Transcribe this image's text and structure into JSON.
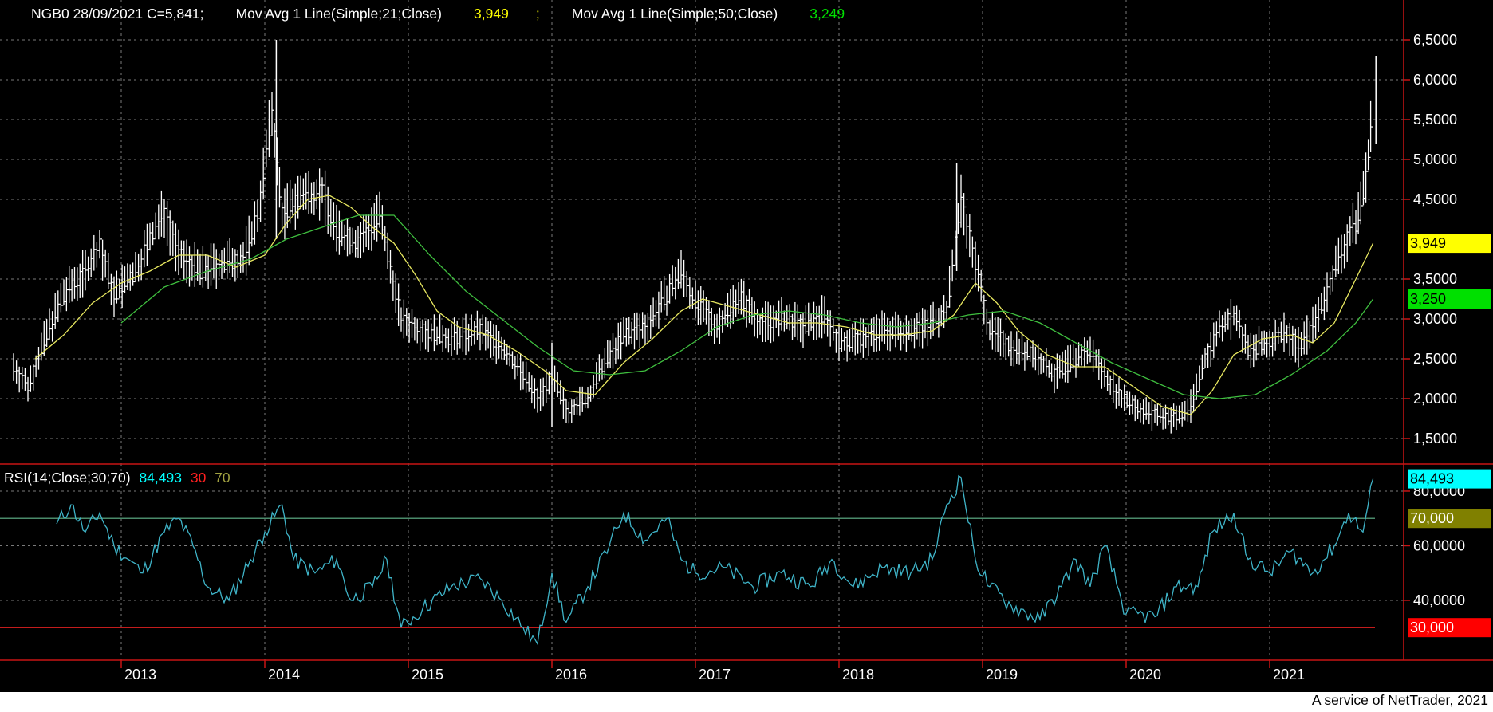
{
  "header": {
    "price_legend": "NGB0 28/09/2021 C=5,841;",
    "ma21_legend": "Mov Avg 1 Line(Simple;21;Close)",
    "ma21_value": "3,949",
    "ma50_legend": "Mov Avg 1 Line(Simple;50;Close)",
    "ma50_value": "3,249",
    "rsi_legend": "RSI(14;Close;30;70)",
    "rsi_value": "84,493",
    "rsi_low": "30",
    "rsi_high": "70"
  },
  "footer": {
    "credit": "A service of NetTrader, 2021"
  },
  "colors": {
    "background": "#000000",
    "price": "#ffffff",
    "ma21": "#e8e860",
    "ma50": "#3fbf3f",
    "rsi": "#3fb4c8",
    "rsi_70_line": "#4a8a6a",
    "rsi_30_line": "#e02020",
    "axis_line": "#c81414",
    "ma21_badge": "#ffff00",
    "ma50_badge": "#00e000",
    "rsi_badge": "#00ffff",
    "rsi70_badge": "#808000",
    "rsi30_badge": "#ff0000"
  },
  "chart_data": [
    {
      "type": "line",
      "panel": "price",
      "x_tick_labels": [
        "2013",
        "2014",
        "2015",
        "2016",
        "2017",
        "2018",
        "2019",
        "2020",
        "2021"
      ],
      "y_tick_labels": [
        "1,5000",
        "2,0000",
        "2,5000",
        "3,0000",
        "3,5000",
        "4,5000",
        "5,0000",
        "5,5000",
        "6,0000",
        "6,5000"
      ],
      "ylim": [
        1.35,
        6.65
      ],
      "grid": true,
      "series": [
        {
          "name": "NGB0",
          "style": "ohlc",
          "points": [
            [
              2012.25,
              2.4
            ],
            [
              2012.35,
              2.15
            ],
            [
              2012.5,
              2.9
            ],
            [
              2012.6,
              3.3
            ],
            [
              2012.75,
              3.6
            ],
            [
              2012.85,
              3.9
            ],
            [
              2012.95,
              3.3
            ],
            [
              2013.1,
              3.6
            ],
            [
              2013.2,
              4.0
            ],
            [
              2013.3,
              4.35
            ],
            [
              2013.4,
              3.8
            ],
            [
              2013.55,
              3.6
            ],
            [
              2013.7,
              3.7
            ],
            [
              2013.85,
              3.75
            ],
            [
              2013.95,
              4.3
            ],
            [
              2014.05,
              5.6
            ],
            [
              2014.12,
              4.3
            ],
            [
              2014.25,
              4.55
            ],
            [
              2014.4,
              4.6
            ],
            [
              2014.5,
              4.1
            ],
            [
              2014.65,
              3.95
            ],
            [
              2014.8,
              4.3
            ],
            [
              2014.95,
              3.0
            ],
            [
              2015.1,
              2.85
            ],
            [
              2015.3,
              2.75
            ],
            [
              2015.5,
              2.85
            ],
            [
              2015.65,
              2.65
            ],
            [
              2015.8,
              2.3
            ],
            [
              2015.9,
              2.0
            ],
            [
              2016.0,
              2.3
            ],
            [
              2016.1,
              1.85
            ],
            [
              2016.25,
              2.0
            ],
            [
              2016.35,
              2.4
            ],
            [
              2016.5,
              2.8
            ],
            [
              2016.65,
              2.9
            ],
            [
              2016.8,
              3.3
            ],
            [
              2016.9,
              3.6
            ],
            [
              2017.0,
              3.2
            ],
            [
              2017.15,
              2.9
            ],
            [
              2017.3,
              3.3
            ],
            [
              2017.45,
              2.95
            ],
            [
              2017.6,
              3.0
            ],
            [
              2017.75,
              2.9
            ],
            [
              2017.9,
              3.05
            ],
            [
              2018.0,
              2.7
            ],
            [
              2018.15,
              2.75
            ],
            [
              2018.3,
              2.85
            ],
            [
              2018.45,
              2.85
            ],
            [
              2018.6,
              2.9
            ],
            [
              2018.75,
              3.1
            ],
            [
              2018.85,
              4.5
            ],
            [
              2018.95,
              3.7
            ],
            [
              2019.05,
              2.85
            ],
            [
              2019.2,
              2.65
            ],
            [
              2019.35,
              2.55
            ],
            [
              2019.5,
              2.3
            ],
            [
              2019.65,
              2.5
            ],
            [
              2019.75,
              2.6
            ],
            [
              2019.85,
              2.3
            ],
            [
              2019.95,
              2.05
            ],
            [
              2020.1,
              1.85
            ],
            [
              2020.2,
              1.8
            ],
            [
              2020.35,
              1.75
            ],
            [
              2020.45,
              1.9
            ],
            [
              2020.55,
              2.5
            ],
            [
              2020.65,
              2.9
            ],
            [
              2020.75,
              3.05
            ],
            [
              2020.85,
              2.6
            ],
            [
              2021.0,
              2.7
            ],
            [
              2021.1,
              2.85
            ],
            [
              2021.2,
              2.65
            ],
            [
              2021.3,
              2.9
            ],
            [
              2021.4,
              3.35
            ],
            [
              2021.5,
              3.85
            ],
            [
              2021.6,
              4.2
            ],
            [
              2021.67,
              4.75
            ],
            [
              2021.72,
              5.8
            ]
          ]
        },
        {
          "name": "Mov Avg 1 Line(Simple;21;Close)",
          "points": [
            [
              2012.4,
              2.5
            ],
            [
              2012.6,
              2.8
            ],
            [
              2012.8,
              3.2
            ],
            [
              2013.0,
              3.45
            ],
            [
              2013.2,
              3.6
            ],
            [
              2013.4,
              3.8
            ],
            [
              2013.6,
              3.8
            ],
            [
              2013.8,
              3.65
            ],
            [
              2014.0,
              3.8
            ],
            [
              2014.15,
              4.2
            ],
            [
              2014.3,
              4.5
            ],
            [
              2014.45,
              4.55
            ],
            [
              2014.6,
              4.4
            ],
            [
              2014.75,
              4.15
            ],
            [
              2014.9,
              3.95
            ],
            [
              2015.05,
              3.55
            ],
            [
              2015.2,
              3.1
            ],
            [
              2015.35,
              2.9
            ],
            [
              2015.55,
              2.8
            ],
            [
              2015.75,
              2.6
            ],
            [
              2015.95,
              2.35
            ],
            [
              2016.1,
              2.1
            ],
            [
              2016.3,
              2.05
            ],
            [
              2016.5,
              2.45
            ],
            [
              2016.7,
              2.75
            ],
            [
              2016.9,
              3.1
            ],
            [
              2017.05,
              3.25
            ],
            [
              2017.25,
              3.15
            ],
            [
              2017.45,
              3.05
            ],
            [
              2017.65,
              2.95
            ],
            [
              2017.85,
              2.95
            ],
            [
              2018.05,
              2.9
            ],
            [
              2018.25,
              2.8
            ],
            [
              2018.45,
              2.8
            ],
            [
              2018.65,
              2.85
            ],
            [
              2018.8,
              3.05
            ],
            [
              2018.95,
              3.45
            ],
            [
              2019.1,
              3.2
            ],
            [
              2019.25,
              2.85
            ],
            [
              2019.45,
              2.55
            ],
            [
              2019.65,
              2.4
            ],
            [
              2019.85,
              2.4
            ],
            [
              2020.05,
              2.15
            ],
            [
              2020.25,
              1.9
            ],
            [
              2020.45,
              1.8
            ],
            [
              2020.6,
              2.1
            ],
            [
              2020.75,
              2.55
            ],
            [
              2020.95,
              2.75
            ],
            [
              2021.15,
              2.8
            ],
            [
              2021.3,
              2.7
            ],
            [
              2021.45,
              2.95
            ],
            [
              2021.6,
              3.5
            ],
            [
              2021.72,
              3.95
            ]
          ]
        },
        {
          "name": "Mov Avg 1 Line(Simple;50;Close)",
          "points": [
            [
              2013.0,
              2.95
            ],
            [
              2013.3,
              3.4
            ],
            [
              2013.6,
              3.6
            ],
            [
              2013.9,
              3.75
            ],
            [
              2014.15,
              4.0
            ],
            [
              2014.4,
              4.15
            ],
            [
              2014.65,
              4.3
            ],
            [
              2014.9,
              4.3
            ],
            [
              2015.15,
              3.8
            ],
            [
              2015.4,
              3.35
            ],
            [
              2015.65,
              3.0
            ],
            [
              2015.9,
              2.65
            ],
            [
              2016.15,
              2.35
            ],
            [
              2016.4,
              2.3
            ],
            [
              2016.65,
              2.35
            ],
            [
              2016.9,
              2.6
            ],
            [
              2017.15,
              2.9
            ],
            [
              2017.4,
              3.05
            ],
            [
              2017.65,
              3.1
            ],
            [
              2017.9,
              3.05
            ],
            [
              2018.15,
              2.95
            ],
            [
              2018.4,
              2.9
            ],
            [
              2018.65,
              2.95
            ],
            [
              2018.9,
              3.05
            ],
            [
              2019.15,
              3.1
            ],
            [
              2019.4,
              2.95
            ],
            [
              2019.65,
              2.7
            ],
            [
              2019.9,
              2.45
            ],
            [
              2020.15,
              2.25
            ],
            [
              2020.4,
              2.05
            ],
            [
              2020.65,
              2.0
            ],
            [
              2020.9,
              2.05
            ],
            [
              2021.15,
              2.3
            ],
            [
              2021.4,
              2.6
            ],
            [
              2021.6,
              2.95
            ],
            [
              2021.72,
              3.25
            ]
          ]
        }
      ]
    },
    {
      "type": "line",
      "panel": "rsi",
      "y_tick_labels": [
        "40,0000",
        "60,0000",
        "80,0000"
      ],
      "ylim": [
        21,
        87
      ],
      "grid": true,
      "series": [
        {
          "name": "RSI(14;Close;30;70)",
          "points": [
            [
              2012.55,
              68
            ],
            [
              2012.65,
              75
            ],
            [
              2012.75,
              65
            ],
            [
              2012.85,
              72
            ],
            [
              2012.95,
              60
            ],
            [
              2013.05,
              55
            ],
            [
              2013.15,
              50
            ],
            [
              2013.3,
              65
            ],
            [
              2013.4,
              70
            ],
            [
              2013.5,
              60
            ],
            [
              2013.6,
              45
            ],
            [
              2013.75,
              40
            ],
            [
              2013.9,
              55
            ],
            [
              2014.0,
              65
            ],
            [
              2014.12,
              75
            ],
            [
              2014.2,
              55
            ],
            [
              2014.35,
              50
            ],
            [
              2014.5,
              55
            ],
            [
              2014.6,
              40
            ],
            [
              2014.75,
              45
            ],
            [
              2014.85,
              55
            ],
            [
              2014.95,
              30
            ],
            [
              2015.1,
              37
            ],
            [
              2015.3,
              45
            ],
            [
              2015.5,
              48
            ],
            [
              2015.65,
              40
            ],
            [
              2015.8,
              30
            ],
            [
              2015.9,
              24
            ],
            [
              2016.0,
              50
            ],
            [
              2016.1,
              32
            ],
            [
              2016.25,
              45
            ],
            [
              2016.4,
              60
            ],
            [
              2016.5,
              72
            ],
            [
              2016.65,
              62
            ],
            [
              2016.8,
              70
            ],
            [
              2016.9,
              55
            ],
            [
              2017.0,
              50
            ],
            [
              2017.2,
              52
            ],
            [
              2017.4,
              45
            ],
            [
              2017.6,
              50
            ],
            [
              2017.8,
              45
            ],
            [
              2017.95,
              55
            ],
            [
              2018.1,
              45
            ],
            [
              2018.3,
              52
            ],
            [
              2018.5,
              50
            ],
            [
              2018.65,
              55
            ],
            [
              2018.75,
              75
            ],
            [
              2018.85,
              85
            ],
            [
              2018.95,
              55
            ],
            [
              2019.05,
              45
            ],
            [
              2019.2,
              38
            ],
            [
              2019.4,
              33
            ],
            [
              2019.55,
              45
            ],
            [
              2019.65,
              55
            ],
            [
              2019.75,
              45
            ],
            [
              2019.85,
              60
            ],
            [
              2020.0,
              35
            ],
            [
              2020.2,
              34
            ],
            [
              2020.35,
              45
            ],
            [
              2020.5,
              45
            ],
            [
              2020.6,
              65
            ],
            [
              2020.75,
              72
            ],
            [
              2020.85,
              55
            ],
            [
              2021.0,
              50
            ],
            [
              2021.15,
              58
            ],
            [
              2021.3,
              50
            ],
            [
              2021.45,
              60
            ],
            [
              2021.55,
              72
            ],
            [
              2021.65,
              65
            ],
            [
              2021.72,
              84.5
            ]
          ]
        }
      ],
      "levels": [
        70,
        30
      ]
    }
  ]
}
